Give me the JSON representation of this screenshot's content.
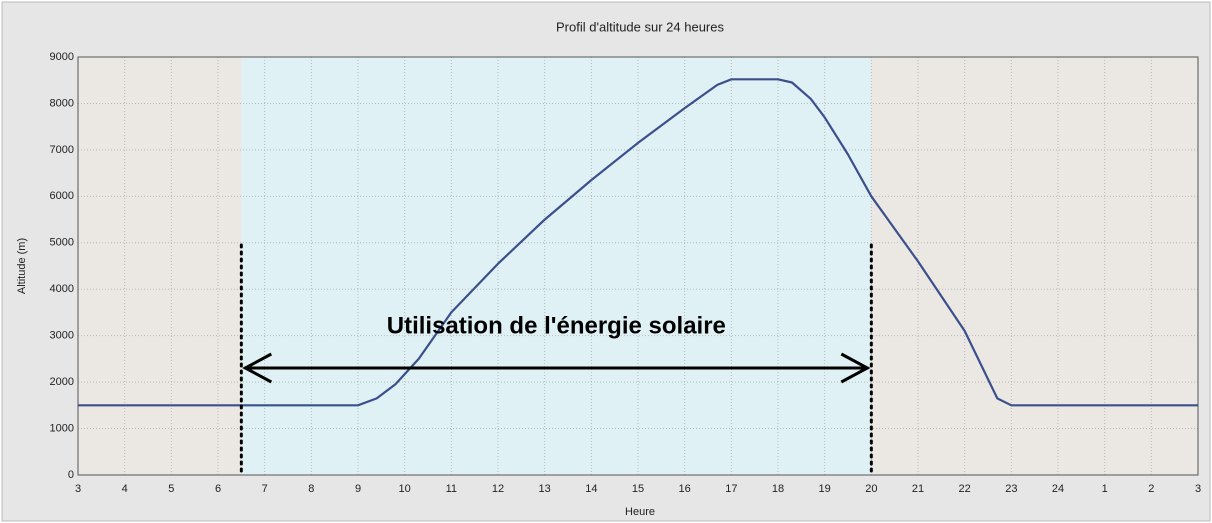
{
  "chart_data": {
    "type": "line",
    "title": "Profil d'altitude sur 24 heures",
    "xlabel": "Heure",
    "ylabel": "Altitude (m)",
    "annotation": "Utilisation de l'énergie solaire",
    "solar_span": [
      6.5,
      20
    ],
    "series": [
      {
        "name": "Altitude",
        "color": "#3b4f8c",
        "x": [
          3,
          9,
          9.4,
          9.8,
          10.3,
          11,
          12,
          13,
          14,
          15,
          16,
          16.7,
          17,
          18,
          18.3,
          18.7,
          19,
          19.5,
          20,
          21,
          22,
          22.7,
          23,
          27
        ],
        "values": [
          1500,
          1500,
          1650,
          1950,
          2500,
          3500,
          4550,
          5500,
          6350,
          7150,
          7900,
          8400,
          8520,
          8520,
          8450,
          8100,
          7700,
          6900,
          6000,
          4600,
          3100,
          1650,
          1500,
          1500
        ]
      }
    ],
    "xlim": [
      3,
      27
    ],
    "xticks": [
      3,
      4,
      5,
      6,
      7,
      8,
      9,
      10,
      11,
      12,
      13,
      14,
      15,
      16,
      17,
      18,
      19,
      20,
      21,
      22,
      23,
      24,
      {
        "value": 25,
        "label": "1"
      },
      {
        "value": 26,
        "label": "2"
      },
      {
        "value": 27,
        "label": "3"
      }
    ],
    "ylim": [
      0,
      9000
    ],
    "yticks": [
      0,
      1000,
      2000,
      3000,
      4000,
      5000,
      6000,
      7000,
      8000,
      9000
    ],
    "grid": true
  }
}
